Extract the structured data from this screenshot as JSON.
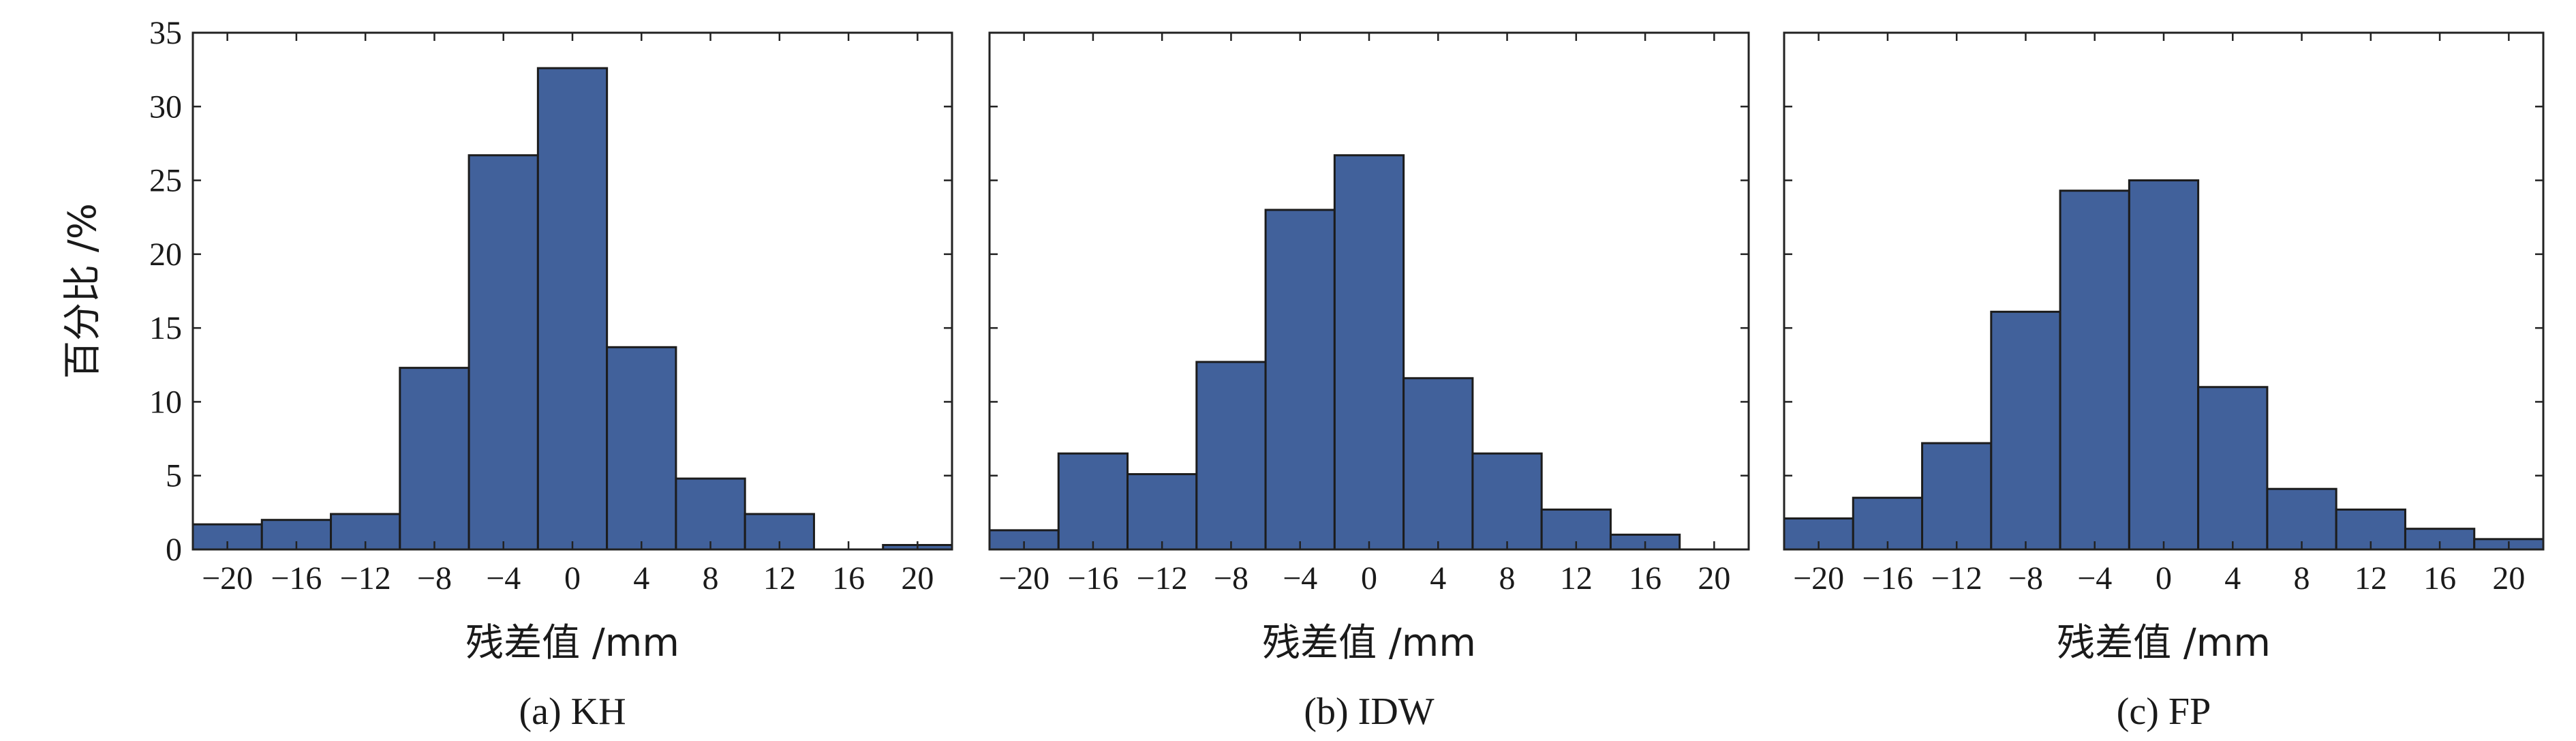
{
  "chart_data": [
    {
      "type": "bar",
      "title": "",
      "caption": "(a) KH",
      "xlabel": "残差值 /mm",
      "ylabel": "百分比 /%",
      "xlim": [
        -22,
        22
      ],
      "ylim": [
        0,
        35
      ],
      "x_ticks": [
        -20,
        -16,
        -12,
        -8,
        -4,
        0,
        4,
        8,
        12,
        16,
        20
      ],
      "x_tick_labels": [
        "−20",
        "−16",
        "−12",
        "−8",
        "−4",
        "0",
        "4",
        "8",
        "12",
        "16",
        "20"
      ],
      "y_ticks": [
        0,
        5,
        10,
        15,
        20,
        25,
        30,
        35
      ],
      "y_tick_labels": [
        "0",
        "5",
        "10",
        "15",
        "20",
        "25",
        "30",
        "35"
      ],
      "bin_edges": [
        -22,
        -18,
        -14,
        -10,
        -6,
        -2,
        2,
        6,
        10,
        14,
        18,
        22
      ],
      "values": [
        1.7,
        2.0,
        2.4,
        12.3,
        26.7,
        32.6,
        13.7,
        4.8,
        2.4,
        0.0,
        0.3
      ]
    },
    {
      "type": "bar",
      "title": "",
      "caption": "(b) IDW",
      "xlabel": "残差值 /mm",
      "ylabel": "",
      "xlim": [
        -22,
        22
      ],
      "ylim": [
        0,
        35
      ],
      "x_ticks": [
        -20,
        -16,
        -12,
        -8,
        -4,
        0,
        4,
        8,
        12,
        16,
        20
      ],
      "x_tick_labels": [
        "−20",
        "−16",
        "−12",
        "−8",
        "−4",
        "0",
        "4",
        "8",
        "12",
        "16",
        "20"
      ],
      "y_ticks": [
        0,
        5,
        10,
        15,
        20,
        25,
        30,
        35
      ],
      "y_tick_labels": [],
      "bin_edges": [
        -22,
        -18,
        -14,
        -10,
        -6,
        -2,
        2,
        6,
        10,
        14,
        18,
        22
      ],
      "values": [
        1.3,
        6.5,
        5.1,
        12.7,
        23.0,
        26.7,
        11.6,
        6.5,
        2.7,
        1.0,
        0.0
      ]
    },
    {
      "type": "bar",
      "title": "",
      "caption": "(c) FP",
      "xlabel": "残差值 /mm",
      "ylabel": "",
      "xlim": [
        -22,
        22
      ],
      "ylim": [
        0,
        35
      ],
      "x_ticks": [
        -20,
        -16,
        -12,
        -8,
        -4,
        0,
        4,
        8,
        12,
        16,
        20
      ],
      "x_tick_labels": [
        "−20",
        "−16",
        "−12",
        "−8",
        "−4",
        "0",
        "4",
        "8",
        "12",
        "16",
        "20"
      ],
      "y_ticks": [
        0,
        5,
        10,
        15,
        20,
        25,
        30,
        35
      ],
      "y_tick_labels": [],
      "bin_edges": [
        -22,
        -18,
        -14,
        -10,
        -6,
        -2,
        2,
        6,
        10,
        14,
        18,
        22
      ],
      "values": [
        2.1,
        3.5,
        7.2,
        16.1,
        24.3,
        25.0,
        11.0,
        4.1,
        2.7,
        1.4,
        0.7
      ]
    }
  ],
  "colors": {
    "bar_fill": "#41619b",
    "bar_edge": "#1c1c1c",
    "axis": "#222222",
    "text": "#1a1a1a"
  }
}
